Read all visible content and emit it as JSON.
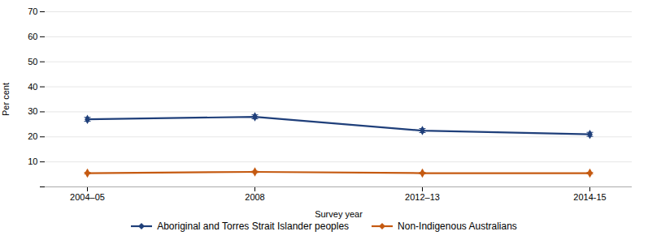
{
  "chart_data": {
    "type": "line",
    "xlabel": "Survey year",
    "ylabel": "Per cent",
    "categories": [
      "2004–05",
      "2008",
      "2012–13",
      "2014-15"
    ],
    "series": [
      {
        "name": "Aboriginal and Torres Strait Islander peoples",
        "color": "#1F3F7A",
        "values": [
          27.0,
          28.0,
          22.5,
          21.0
        ],
        "errors": [
          0.8,
          0.8,
          0.8,
          0.8
        ],
        "marker": "diamond"
      },
      {
        "name": "Non-Indigenous Australians",
        "color": "#C55A11",
        "values": [
          5.5,
          6.0,
          5.5,
          5.5
        ],
        "errors": [
          0.3,
          0.3,
          0.3,
          0.3
        ],
        "marker": "diamond"
      }
    ],
    "ylim": [
      0,
      70
    ],
    "yticks": [
      {
        "value": 0,
        "label": ""
      },
      10,
      20,
      30,
      40,
      50,
      60,
      70
    ],
    "grid": true,
    "legend": "bottom"
  }
}
